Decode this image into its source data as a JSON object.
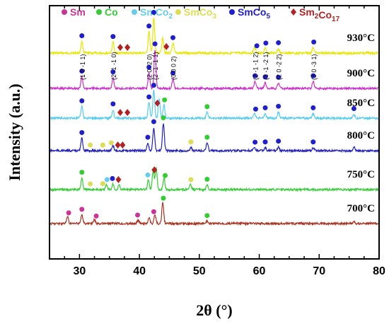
{
  "chart_data": {
    "type": "line",
    "xlabel": "2θ (°)",
    "ylabel": "Intensity (a.u.)",
    "xlim": [
      25,
      80
    ],
    "xticks": [
      30,
      40,
      50,
      60,
      70,
      80
    ],
    "grid": false,
    "legend": {
      "placement": "top",
      "entries": [
        {
          "marker": "circle",
          "color": "#cc3399",
          "label": "Sm"
        },
        {
          "marker": "circle",
          "color": "#33cc33",
          "label": "Co"
        },
        {
          "marker": "circle",
          "color": "#66ccee",
          "label": "SmCo2"
        },
        {
          "marker": "circle",
          "color": "#dddd55",
          "label": "SmCo3"
        },
        {
          "marker": "circle",
          "color": "#1f1fcc",
          "label": "SmCo5"
        },
        {
          "marker": "diamond",
          "color": "#b22222",
          "label": "Sm2Co17"
        }
      ]
    },
    "series": [
      {
        "name": "930°C",
        "color": "#e6e600",
        "peaks": [
          [
            30.4,
            0.3
          ],
          [
            35.6,
            0.28
          ],
          [
            41.6,
            0.55
          ],
          [
            42.4,
            0.9
          ],
          [
            43.9,
            0.4
          ],
          [
            45.6,
            0.25
          ],
          [
            59.2,
            0.15
          ],
          [
            61.0,
            0.12
          ],
          [
            63.2,
            0.12
          ],
          [
            69.0,
            0.15
          ]
        ],
        "markers": [
          {
            "phase": "SmCo5",
            "x": 30.4
          },
          {
            "phase": "SmCo5",
            "x": 35.6
          },
          {
            "phase": "SmCo5",
            "x": 41.6
          },
          {
            "phase": "SmCo5",
            "x": 42.4
          },
          {
            "phase": "Sm2Co17",
            "x": 36.8
          },
          {
            "phase": "Sm2Co17",
            "x": 38.0
          },
          {
            "phase": "Sm2Co17",
            "x": 44.5
          },
          {
            "phase": "SmCo5",
            "x": 45.6
          },
          {
            "phase": "SmCo5",
            "x": 59.6
          },
          {
            "phase": "SmCo5",
            "x": 61.1
          },
          {
            "phase": "SmCo5",
            "x": 63.2
          },
          {
            "phase": "SmCo5",
            "x": 69.1
          }
        ]
      },
      {
        "name": "900°C",
        "color": "#cc33cc",
        "peaks": [
          [
            30.4,
            0.3
          ],
          [
            35.6,
            0.28
          ],
          [
            41.6,
            0.4
          ],
          [
            42.6,
            1.0
          ],
          [
            45.6,
            0.25
          ],
          [
            59.3,
            0.18
          ],
          [
            61.0,
            0.15
          ],
          [
            63.2,
            0.14
          ],
          [
            69.0,
            0.18
          ]
        ],
        "markers": [
          {
            "phase": "SmCo5",
            "x": 30.4
          },
          {
            "phase": "SmCo5",
            "x": 35.6
          },
          {
            "phase": "SmCo5",
            "x": 41.6
          },
          {
            "phase": "SmCo5",
            "x": 42.6
          },
          {
            "phase": "SmCo5",
            "x": 45.6
          },
          {
            "phase": "SmCo5",
            "x": 59.3
          },
          {
            "phase": "SmCo5",
            "x": 61.0
          },
          {
            "phase": "SmCo5",
            "x": 63.2
          },
          {
            "phase": "SmCo5",
            "x": 69.0
          }
        ],
        "hkl_labels": [
          {
            "x": 30.4,
            "text": "(1 0 -1 1)"
          },
          {
            "x": 35.6,
            "text": "(2 -1 -1 0)"
          },
          {
            "x": 41.6,
            "text": "(2 0 -2 0)"
          },
          {
            "x": 42.6,
            "text": "(2 -1 -1 1)"
          },
          {
            "x": 45.6,
            "text": "(0 0 0 2)"
          },
          {
            "x": 59.3,
            "text": "(2 -1 -1 2)"
          },
          {
            "x": 61.0,
            "text": "(3 -1 -2 1)"
          },
          {
            "x": 63.2,
            "text": "(2 0 -2 2)"
          },
          {
            "x": 69.0,
            "text": "(3 0 -3 1)"
          }
        ]
      },
      {
        "name": "850°C",
        "color": "#55ccee",
        "peaks": [
          [
            30.4,
            0.3
          ],
          [
            35.6,
            0.22
          ],
          [
            41.6,
            0.4
          ],
          [
            42.4,
            0.7
          ],
          [
            43.3,
            0.5
          ],
          [
            44.1,
            0.35
          ],
          [
            51.3,
            0.15
          ],
          [
            59.2,
            0.12
          ],
          [
            61.0,
            0.12
          ],
          [
            63.2,
            0.16
          ],
          [
            69.0,
            0.12
          ],
          [
            75.8,
            0.1
          ]
        ],
        "markers": [
          {
            "phase": "SmCo5",
            "x": 30.4
          },
          {
            "phase": "SmCo5",
            "x": 35.6
          },
          {
            "phase": "Sm2Co17",
            "x": 36.8
          },
          {
            "phase": "Sm2Co17",
            "x": 38.0
          },
          {
            "phase": "SmCo5",
            "x": 41.6
          },
          {
            "phase": "SmCo5",
            "x": 42.4
          },
          {
            "phase": "Sm2Co17",
            "x": 43.0
          },
          {
            "phase": "Co",
            "x": 44.2
          },
          {
            "phase": "Co",
            "x": 51.3
          },
          {
            "phase": "SmCo5",
            "x": 59.4
          },
          {
            "phase": "SmCo5",
            "x": 61.0
          },
          {
            "phase": "SmCo5",
            "x": 63.2
          },
          {
            "phase": "SmCo5",
            "x": 69.0
          },
          {
            "phase": "SmCo5",
            "x": 75.8
          }
        ]
      },
      {
        "name": "800°C",
        "color": "#2222bb",
        "peaks": [
          [
            30.4,
            0.32
          ],
          [
            35.6,
            0.12
          ],
          [
            41.4,
            0.2
          ],
          [
            42.4,
            0.6
          ],
          [
            44.0,
            0.7
          ],
          [
            48.6,
            0.08
          ],
          [
            51.3,
            0.2
          ],
          [
            59.2,
            0.08
          ],
          [
            61.0,
            0.08
          ],
          [
            63.2,
            0.1
          ],
          [
            69.0,
            0.08
          ],
          [
            75.8,
            0.1
          ]
        ],
        "markers": [
          {
            "phase": "SmCo5",
            "x": 30.4
          },
          {
            "phase": "SmCo3",
            "x": 31.8
          },
          {
            "phase": "SmCo3",
            "x": 33.9
          },
          {
            "phase": "SmCo3",
            "x": 35.3
          },
          {
            "phase": "Sm2Co17",
            "x": 36.4
          },
          {
            "phase": "Sm2Co17",
            "x": 37.2
          },
          {
            "phase": "SmCo5",
            "x": 41.4
          },
          {
            "phase": "SmCo5",
            "x": 42.4
          },
          {
            "phase": "Co",
            "x": 44.0
          },
          {
            "phase": "SmCo3",
            "x": 48.6
          },
          {
            "phase": "Co",
            "x": 51.3
          },
          {
            "phase": "SmCo5",
            "x": 59.3
          },
          {
            "phase": "SmCo5",
            "x": 61.0
          },
          {
            "phase": "SmCo5",
            "x": 63.2
          },
          {
            "phase": "SmCo5",
            "x": 69.0
          }
        ]
      },
      {
        "name": "750°C",
        "color": "#33cc33",
        "peaks": [
          [
            30.4,
            0.3
          ],
          [
            34.5,
            0.12
          ],
          [
            35.6,
            0.15
          ],
          [
            36.6,
            0.12
          ],
          [
            41.5,
            0.25
          ],
          [
            42.3,
            0.5
          ],
          [
            42.8,
            0.55
          ],
          [
            44.1,
            0.3
          ],
          [
            48.5,
            0.12
          ],
          [
            51.3,
            0.12
          ]
        ],
        "markers": [
          {
            "phase": "Co",
            "x": 30.4
          },
          {
            "phase": "SmCo3",
            "x": 31.8
          },
          {
            "phase": "SmCo3",
            "x": 33.9
          },
          {
            "phase": "SmCo2",
            "x": 34.6
          },
          {
            "phase": "SmCo5",
            "x": 35.5
          },
          {
            "phase": "Sm2Co17",
            "x": 36.5
          },
          {
            "phase": "SmCo2",
            "x": 41.4
          },
          {
            "phase": "Sm2Co17",
            "x": 42.5
          },
          {
            "phase": "Co",
            "x": 44.3
          },
          {
            "phase": "SmCo3",
            "x": 48.6
          },
          {
            "phase": "Co",
            "x": 51.3
          }
        ]
      },
      {
        "name": "700°C",
        "color": "#aa3322",
        "peaks": [
          [
            28.0,
            0.18
          ],
          [
            30.4,
            0.22
          ],
          [
            32.5,
            0.1
          ],
          [
            39.8,
            0.08
          ],
          [
            41.6,
            0.15
          ],
          [
            42.6,
            0.22
          ],
          [
            43.9,
            0.55
          ],
          [
            51.3,
            0.06
          ],
          [
            75.8,
            0.05
          ]
        ],
        "markers": [
          {
            "phase": "Sm",
            "x": 28.2
          },
          {
            "phase": "Sm",
            "x": 30.4
          },
          {
            "phase": "Sm",
            "x": 32.8
          },
          {
            "phase": "Sm",
            "x": 39.7
          },
          {
            "phase": "Sm",
            "x": 42.4
          },
          {
            "phase": "Co",
            "x": 44.0
          },
          {
            "phase": "Co",
            "x": 51.3
          }
        ]
      }
    ]
  }
}
